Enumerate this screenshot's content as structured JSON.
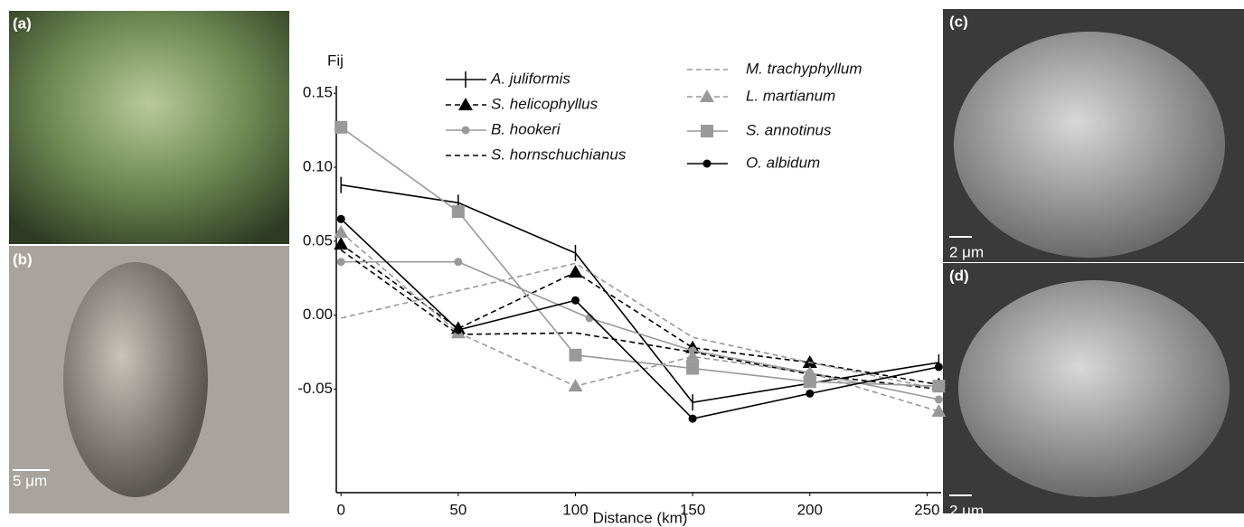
{
  "panels": [
    {
      "label": "(a)"
    },
    {
      "label": "(b)",
      "scale": "5 μm"
    },
    {
      "label": "(c)",
      "scale": "2 μm"
    },
    {
      "label": "(d)",
      "scale": "2 μm"
    }
  ],
  "chart_data": {
    "type": "line",
    "ylabel": "Fij",
    "xlabel": "Distance (km)",
    "xlim": [
      -2,
      256
    ],
    "xticks": [
      0,
      50,
      100,
      150,
      200,
      250
    ],
    "ylim": [
      -0.12,
      0.155
    ],
    "yticks": [
      0.15,
      {
        "value": 0.1,
        "label": "0.10"
      },
      0.05,
      {
        "value": 0,
        "label": "0.00"
      },
      -0.05
    ],
    "legend": "top",
    "series": [
      {
        "name": "A. juliformis",
        "color": "#000000",
        "dash": false,
        "marker": "cross",
        "x": [
          0,
          50,
          100,
          150,
          255
        ],
        "values": [
          0.088,
          0.076,
          0.042,
          -0.059,
          -0.032
        ]
      },
      {
        "name": "S. helicophyllus",
        "color": "#000000",
        "dash": true,
        "marker": "triangle",
        "x": [
          0,
          50,
          100,
          150,
          200,
          255
        ],
        "values": [
          0.048,
          -0.009,
          0.029,
          -0.022,
          -0.032,
          -0.047
        ]
      },
      {
        "name": "B. hookeri",
        "color": "#999999",
        "dash": false,
        "marker": "circle",
        "x": [
          0,
          50,
          106,
          150,
          200,
          255
        ],
        "values": [
          0.036,
          0.036,
          -0.002,
          -0.024,
          -0.039,
          -0.057
        ]
      },
      {
        "name": "S. hornschuchianus",
        "color": "#000000",
        "dash": true,
        "marker": "none",
        "x": [
          0,
          50,
          100,
          150,
          200,
          255
        ],
        "values": [
          0.044,
          -0.013,
          -0.012,
          -0.025,
          -0.04,
          -0.05
        ]
      },
      {
        "name": "M. trachyphyllum",
        "color": "#999999",
        "dash": true,
        "marker": "none",
        "x": [
          0,
          100,
          150,
          200,
          255
        ],
        "values": [
          -0.002,
          0.035,
          -0.015,
          -0.032,
          -0.05
        ]
      },
      {
        "name": "L. martianum",
        "color": "#999999",
        "dash": true,
        "marker": "triangle",
        "x": [
          0,
          50,
          100,
          150,
          200,
          255
        ],
        "values": [
          0.056,
          -0.012,
          -0.048,
          -0.028,
          -0.039,
          -0.065
        ]
      },
      {
        "name": "S. annotinus",
        "color": "#999999",
        "dash": false,
        "marker": "square",
        "x": [
          0,
          50,
          100,
          150,
          200,
          255
        ],
        "values": [
          0.127,
          0.07,
          -0.027,
          -0.036,
          -0.045,
          -0.048
        ]
      },
      {
        "name": "O. albidum",
        "color": "#000000",
        "dash": false,
        "marker": "circle",
        "x": [
          0,
          50,
          100,
          150,
          200,
          255
        ],
        "values": [
          0.065,
          -0.01,
          0.01,
          -0.07,
          -0.053,
          -0.035
        ]
      }
    ]
  }
}
